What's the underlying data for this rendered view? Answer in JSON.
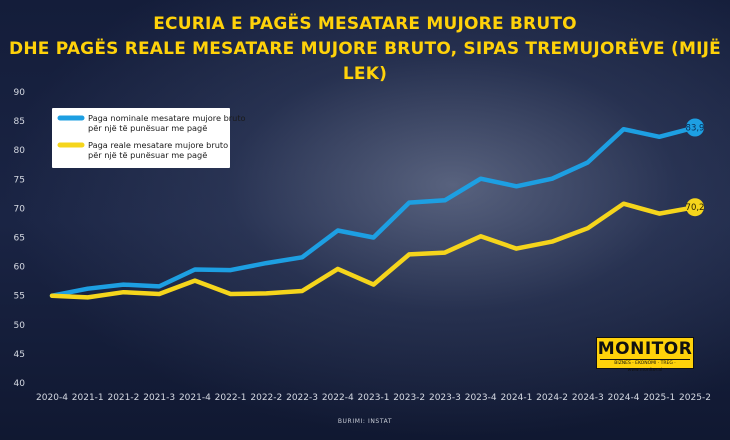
{
  "title": {
    "line1": "ECURIA E PAGËS MESATARE MUJORE BRUTO",
    "line2": "DHE PAGËS REALE MESATARE MUJORE BRUTO, SIPAS TREMUJORËVE (MIJË LEK)"
  },
  "source": "BURIMI: INSTAT",
  "logo": {
    "brand": "MONITOR",
    "tagline": "BIZNES · EKONOMI · TREG · www.monitor.al"
  },
  "colors": {
    "nominal": "#1d9fe2",
    "real": "#f5d51c",
    "title": "#ffd20a"
  },
  "chart_data": {
    "type": "line",
    "categories": [
      "2020-4",
      "2021-1",
      "2021-2",
      "2021-3",
      "2021-4",
      "2022-1",
      "2022-2",
      "2022-3",
      "2022-4",
      "2023-1",
      "2023-2",
      "2023-3",
      "2023-4",
      "2024-1",
      "2024-2",
      "2024-3",
      "2024-4",
      "2025-1",
      "2025-2"
    ],
    "ylim": [
      40,
      90
    ],
    "yticks": [
      40,
      45,
      50,
      55,
      60,
      65,
      70,
      75,
      80,
      85,
      90
    ],
    "legend_position": "top-left",
    "grid": false,
    "series": [
      {
        "name_line1": "Paga nominale mesatare mujore bruto",
        "name_line2": "për një të punësuar me pagë",
        "color": "#1d9fe2",
        "values": [
          55.0,
          56.2,
          56.9,
          56.6,
          59.5,
          59.4,
          60.6,
          61.6,
          66.2,
          65.0,
          71.0,
          71.4,
          75.1,
          73.8,
          75.1,
          77.9,
          83.6,
          82.3,
          83.9
        ],
        "end_label": "83,9"
      },
      {
        "name_line1": "Paga reale mesatare mujore bruto",
        "name_line2": "për një të punësuar me pagë",
        "color": "#f5d51c",
        "values": [
          55.0,
          54.7,
          55.6,
          55.3,
          57.6,
          55.3,
          55.4,
          55.8,
          59.6,
          56.9,
          62.1,
          62.4,
          65.2,
          63.1,
          64.3,
          66.6,
          70.8,
          69.1,
          70.2
        ],
        "end_label": "70,2"
      }
    ]
  }
}
